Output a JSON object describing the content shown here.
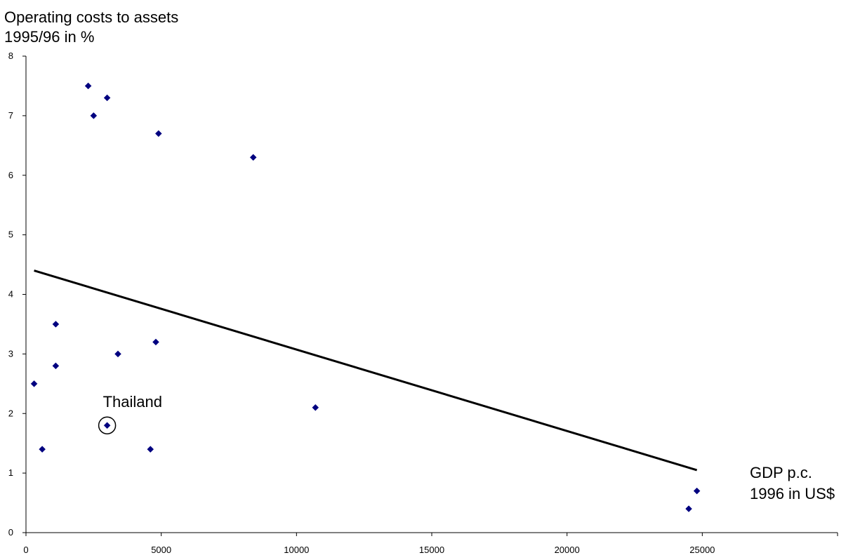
{
  "chart_data": {
    "type": "scatter",
    "title": "",
    "ylabel_lines": [
      "Operating costs to assets",
      "1995/96 in %"
    ],
    "xlabel_lines": [
      "GDP p.c.",
      "1996 in US$"
    ],
    "xlim": [
      0,
      30000
    ],
    "ylim": [
      0,
      8
    ],
    "x_ticks": [
      0,
      5000,
      10000,
      15000,
      20000,
      25000
    ],
    "y_ticks": [
      0,
      1,
      2,
      3,
      4,
      5,
      6,
      7,
      8
    ],
    "grid": false,
    "legend": "none",
    "marker_color": "#000080",
    "points": [
      {
        "x": 2300,
        "y": 7.5
      },
      {
        "x": 3000,
        "y": 7.3
      },
      {
        "x": 2500,
        "y": 7.0
      },
      {
        "x": 4900,
        "y": 6.7
      },
      {
        "x": 8400,
        "y": 6.3
      },
      {
        "x": 1100,
        "y": 3.5
      },
      {
        "x": 4800,
        "y": 3.2
      },
      {
        "x": 3400,
        "y": 3.0
      },
      {
        "x": 1100,
        "y": 2.8
      },
      {
        "x": 300,
        "y": 2.5
      },
      {
        "x": 10700,
        "y": 2.1
      },
      {
        "x": 3000,
        "y": 1.8
      },
      {
        "x": 600,
        "y": 1.4
      },
      {
        "x": 4600,
        "y": 1.4
      },
      {
        "x": 24800,
        "y": 0.7
      },
      {
        "x": 24500,
        "y": 0.4
      }
    ],
    "trendline": {
      "x": [
        300,
        24800
      ],
      "y": [
        4.4,
        1.05
      ]
    },
    "annotations": [
      {
        "text": "Thailand",
        "x": 3000,
        "y": 1.8
      }
    ]
  }
}
